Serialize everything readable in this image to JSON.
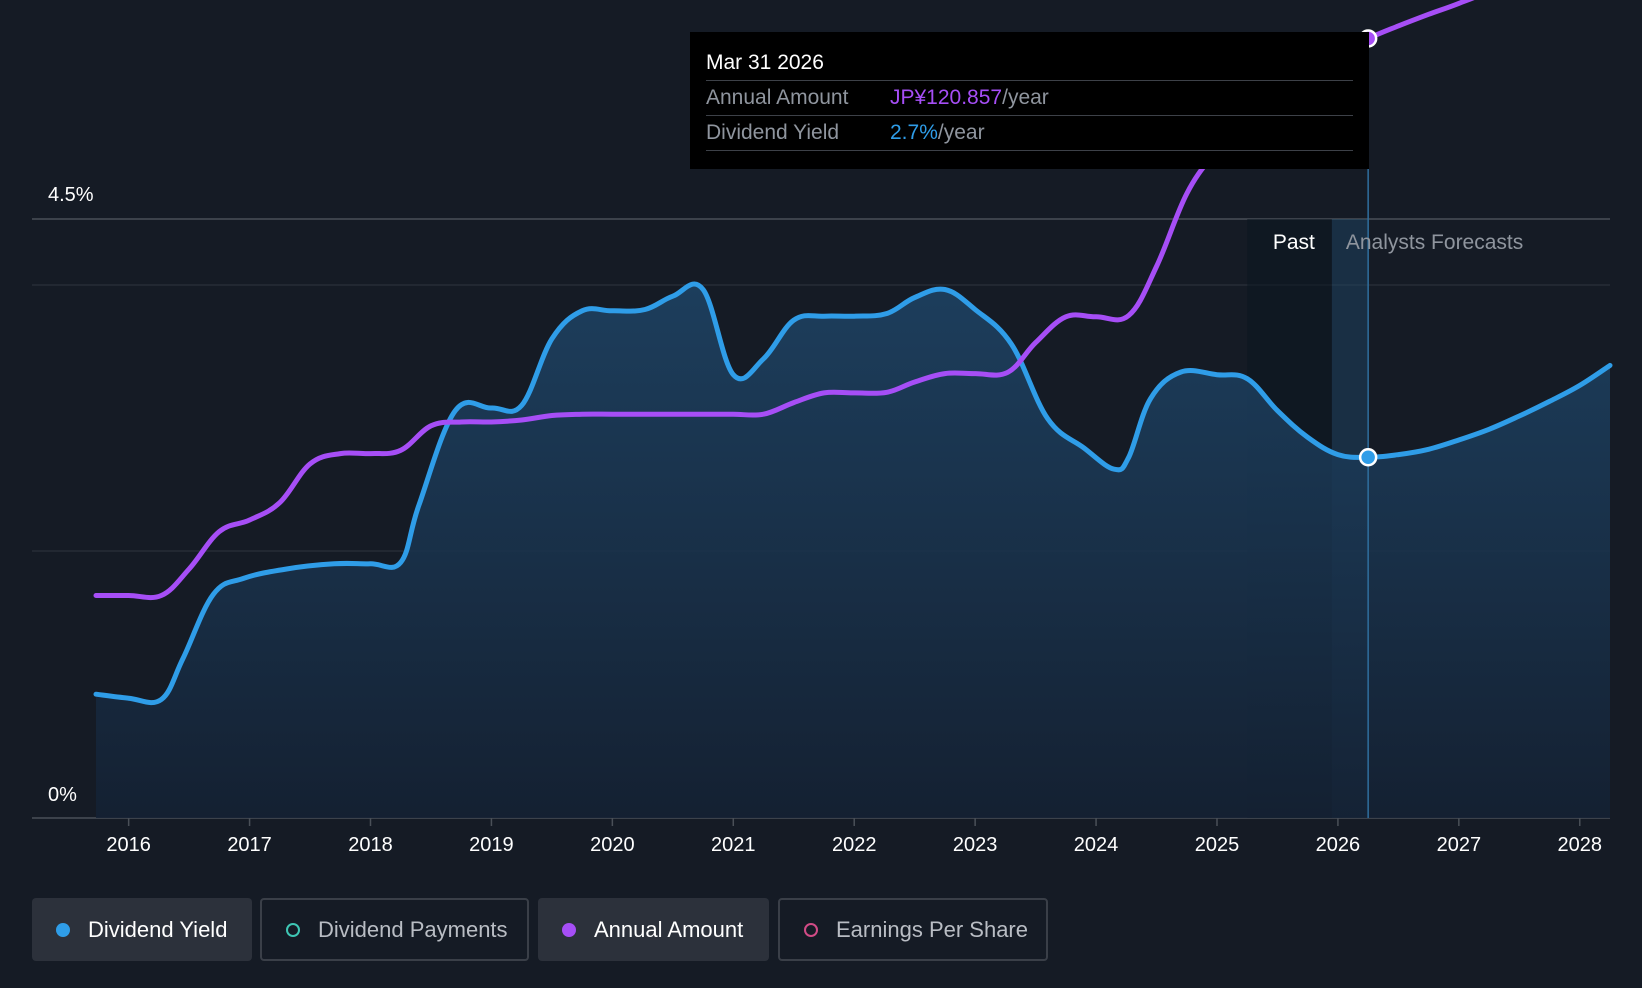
{
  "colors": {
    "background": "#151b25",
    "dividend_yield": "#2f9de8",
    "annual_amount": "#a64ef6",
    "dividend_payments": "#3ec6b4",
    "earnings_per_share": "#d14b86",
    "grid": "#3a3f48"
  },
  "tooltip": {
    "date": "Mar 31 2026",
    "annual_amount_label": "Annual Amount",
    "annual_amount_value": "JP¥120.857",
    "annual_amount_unit": "/year",
    "dividend_yield_label": "Dividend Yield",
    "dividend_yield_value": "2.7%",
    "dividend_yield_unit": "/year"
  },
  "legend": [
    {
      "label": "Dividend Yield",
      "active": true,
      "icon": "filled-dot-icon"
    },
    {
      "label": "Dividend Payments",
      "active": false,
      "icon": "hollow-dot-icon"
    },
    {
      "label": "Annual Amount",
      "active": true,
      "icon": "filled-dot-icon"
    },
    {
      "label": "Earnings Per Share",
      "active": false,
      "icon": "hollow-dot-icon"
    }
  ],
  "chart_data": {
    "type": "line",
    "title": "",
    "xlabel": "",
    "ylabel": "",
    "ylim": [
      0,
      4.5
    ],
    "y_tick_labels": [
      "0%",
      "4.5%"
    ],
    "x_tick_labels": [
      "2016",
      "2017",
      "2018",
      "2019",
      "2020",
      "2021",
      "2022",
      "2023",
      "2024",
      "2025",
      "2026",
      "2027",
      "2028"
    ],
    "xlim": [
      2015.73,
      2028.25
    ],
    "grid": "horizontal",
    "region_labels": {
      "past": "Past",
      "forecast": "Analysts Forecasts"
    },
    "past_boundary_x": 2025.25,
    "forecast_start_x": 2026.25,
    "highlight_x": 2026.25,
    "series": [
      {
        "name": "Dividend Yield",
        "unit": "%",
        "area_fill": true,
        "x": [
          2015.73,
          2016.0,
          2016.27,
          2016.45,
          2016.7,
          2016.95,
          2017.3,
          2017.7,
          2018.0,
          2018.25,
          2018.4,
          2018.7,
          2019.0,
          2019.25,
          2019.5,
          2019.75,
          2020.0,
          2020.27,
          2020.5,
          2020.75,
          2021.0,
          2021.25,
          2021.5,
          2021.75,
          2022.0,
          2022.27,
          2022.5,
          2022.75,
          2023.0,
          2023.3,
          2023.6,
          2023.9,
          2024.15,
          2024.27,
          2024.45,
          2024.7,
          2025.0,
          2025.25,
          2025.5,
          2025.75,
          2026.0,
          2026.25,
          2026.5,
          2026.75,
          2027.0,
          2027.25,
          2027.5,
          2027.75,
          2028.0,
          2028.25
        ],
        "values": [
          0.93,
          0.9,
          0.89,
          1.2,
          1.68,
          1.8,
          1.87,
          1.91,
          1.91,
          1.92,
          2.35,
          3.06,
          3.08,
          3.1,
          3.6,
          3.81,
          3.81,
          3.82,
          3.92,
          3.97,
          3.33,
          3.45,
          3.74,
          3.77,
          3.77,
          3.79,
          3.91,
          3.97,
          3.82,
          3.56,
          3.0,
          2.78,
          2.62,
          2.71,
          3.15,
          3.35,
          3.33,
          3.3,
          3.06,
          2.86,
          2.73,
          2.71,
          2.73,
          2.77,
          2.84,
          2.92,
          3.02,
          3.13,
          3.25,
          3.4
        ]
      },
      {
        "name": "Annual Amount",
        "unit": "JP¥/year",
        "area_fill": false,
        "x": [
          2015.73,
          2016.0,
          2016.27,
          2016.5,
          2016.75,
          2017.0,
          2017.25,
          2017.5,
          2017.75,
          2018.0,
          2018.25,
          2018.5,
          2018.75,
          2019.0,
          2019.25,
          2019.5,
          2019.75,
          2020.0,
          2020.25,
          2020.5,
          2020.75,
          2021.0,
          2021.25,
          2021.5,
          2021.75,
          2022.0,
          2022.27,
          2022.5,
          2022.75,
          2023.0,
          2023.27,
          2023.5,
          2023.75,
          2024.0,
          2024.27,
          2024.5,
          2024.75,
          2025.0,
          2025.25,
          2025.5,
          2025.75,
          2026.0,
          2026.25,
          2026.5,
          2026.75,
          2027.0,
          2027.25,
          2027.5,
          2027.75,
          2028.0,
          2028.25
        ],
        "values": [
          34.5,
          34.5,
          34.5,
          38.6,
          44.4,
          46.2,
          48.9,
          54.9,
          56.5,
          56.5,
          57.0,
          60.8,
          61.4,
          61.4,
          61.7,
          62.4,
          62.6,
          62.6,
          62.6,
          62.6,
          62.6,
          62.6,
          62.6,
          64.4,
          65.9,
          65.9,
          66.0,
          67.6,
          68.9,
          68.9,
          69.1,
          73.7,
          77.7,
          77.7,
          77.9,
          85.5,
          96.8,
          103.6,
          109.3,
          113.3,
          116.5,
          118.5,
          120.857,
          122.8,
          124.6,
          126.3,
          128.3,
          131.6,
          136.0,
          140.2,
          145.0
        ]
      }
    ]
  }
}
